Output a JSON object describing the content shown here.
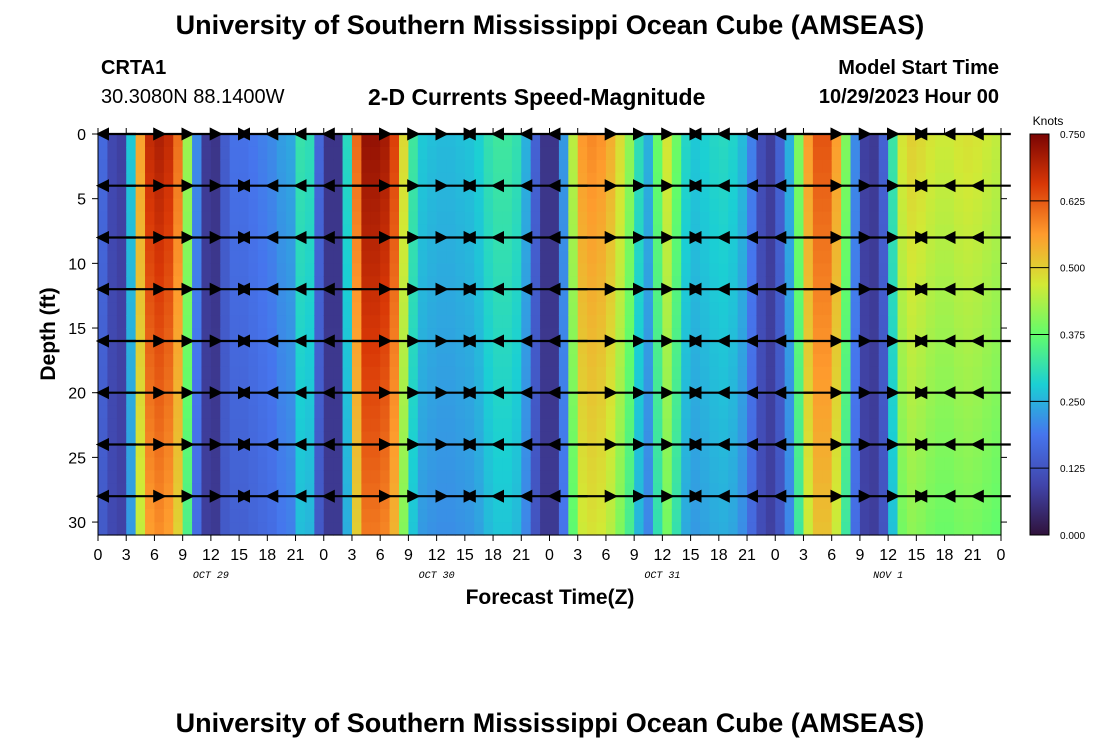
{
  "header": {
    "title": "University of Southern Mississippi Ocean Cube (AMSEAS)",
    "station_id": "CRTA1",
    "station_coords": "30.3080N  88.1400W",
    "chart_title": "2-D Currents Speed-Magnitude",
    "model_start_label": "Model Start Time",
    "model_start_value": "10/29/2023 Hour 00"
  },
  "footer": {
    "title": "University of Southern Mississippi Ocean Cube (AMSEAS)"
  },
  "chart_data": {
    "type": "heatmap",
    "title": "2-D Currents Speed-Magnitude",
    "xlabel": "Forecast Time(Z)",
    "ylabel": "Depth (ft)",
    "x_ticks": [
      "0",
      "3",
      "6",
      "9",
      "12",
      "15",
      "18",
      "21",
      "0",
      "3",
      "6",
      "9",
      "12",
      "15",
      "18",
      "21",
      "0",
      "3",
      "6",
      "9",
      "12",
      "15",
      "18",
      "21",
      "0",
      "3",
      "6",
      "9",
      "12",
      "15",
      "18",
      "21",
      "0"
    ],
    "x_range_hours": [
      0,
      96
    ],
    "date_labels": [
      {
        "label": "OCT 29",
        "hour": 12
      },
      {
        "label": "OCT 30",
        "hour": 36
      },
      {
        "label": "OCT 31",
        "hour": 60
      },
      {
        "label": "NOV 1",
        "hour": 84
      }
    ],
    "y_ticks": [
      0,
      5,
      10,
      15,
      20,
      25,
      30
    ],
    "y_range_ft": [
      0,
      31
    ],
    "colorbar": {
      "label": "Knots",
      "min": 0.0,
      "max": 0.75,
      "tick_values": [
        0.0,
        0.125,
        0.25,
        0.375,
        0.5,
        0.625,
        0.75
      ],
      "tick_labels": [
        "0.000",
        "0.125",
        "0.250",
        "0.375",
        "0.500",
        "0.625",
        "0.750"
      ]
    },
    "speed_profile_knots": [
      {
        "hour": 0,
        "value": 0.2
      },
      {
        "hour": 1,
        "value": 0.13
      },
      {
        "hour": 2,
        "value": 0.07
      },
      {
        "hour": 3,
        "value": 0.1
      },
      {
        "hour": 4,
        "value": 0.45
      },
      {
        "hour": 5,
        "value": 0.66
      },
      {
        "hour": 6,
        "value": 0.7
      },
      {
        "hour": 7,
        "value": 0.7
      },
      {
        "hour": 8,
        "value": 0.66
      },
      {
        "hour": 9,
        "value": 0.55
      },
      {
        "hour": 10,
        "value": 0.3
      },
      {
        "hour": 11,
        "value": 0.12
      },
      {
        "hour": 12,
        "value": 0.03
      },
      {
        "hour": 13,
        "value": 0.1
      },
      {
        "hour": 14,
        "value": 0.18
      },
      {
        "hour": 15,
        "value": 0.18
      },
      {
        "hour": 16,
        "value": 0.18
      },
      {
        "hour": 17,
        "value": 0.2
      },
      {
        "hour": 18,
        "value": 0.2
      },
      {
        "hour": 19,
        "value": 0.22
      },
      {
        "hour": 20,
        "value": 0.24
      },
      {
        "hour": 21,
        "value": 0.24
      },
      {
        "hour": 22,
        "value": 0.4
      },
      {
        "hour": 23,
        "value": 0.22
      },
      {
        "hour": 24,
        "value": 0.1
      },
      {
        "hour": 25,
        "value": 0.03
      },
      {
        "hour": 26,
        "value": 0.1
      },
      {
        "hour": 27,
        "value": 0.5
      },
      {
        "hour": 28,
        "value": 0.72
      },
      {
        "hour": 29,
        "value": 0.73
      },
      {
        "hour": 30,
        "value": 0.72
      },
      {
        "hour": 31,
        "value": 0.7
      },
      {
        "hour": 32,
        "value": 0.6
      },
      {
        "hour": 33,
        "value": 0.38
      },
      {
        "hour": 34,
        "value": 0.28
      },
      {
        "hour": 35,
        "value": 0.27
      },
      {
        "hour": 36,
        "value": 0.26
      },
      {
        "hour": 37,
        "value": 0.26
      },
      {
        "hour": 38,
        "value": 0.26
      },
      {
        "hour": 39,
        "value": 0.27
      },
      {
        "hour": 40,
        "value": 0.27
      },
      {
        "hour": 41,
        "value": 0.3
      },
      {
        "hour": 42,
        "value": 0.33
      },
      {
        "hour": 43,
        "value": 0.33
      },
      {
        "hour": 44,
        "value": 0.33
      },
      {
        "hour": 45,
        "value": 0.3
      },
      {
        "hour": 46,
        "value": 0.2
      },
      {
        "hour": 47,
        "value": 0.1
      },
      {
        "hour": 48,
        "value": 0.03
      },
      {
        "hour": 49,
        "value": 0.1
      },
      {
        "hour": 50,
        "value": 0.35
      },
      {
        "hour": 51,
        "value": 0.55
      },
      {
        "hour": 52,
        "value": 0.58
      },
      {
        "hour": 53,
        "value": 0.58
      },
      {
        "hour": 54,
        "value": 0.56
      },
      {
        "hour": 55,
        "value": 0.52
      },
      {
        "hour": 56,
        "value": 0.45
      },
      {
        "hour": 57,
        "value": 0.38
      },
      {
        "hour": 58,
        "value": 0.24
      },
      {
        "hour": 59,
        "value": 0.26
      },
      {
        "hour": 60,
        "value": 0.5
      },
      {
        "hour": 61,
        "value": 0.45
      },
      {
        "hour": 62,
        "value": 0.32
      },
      {
        "hour": 63,
        "value": 0.27
      },
      {
        "hour": 64,
        "value": 0.28
      },
      {
        "hour": 65,
        "value": 0.29
      },
      {
        "hour": 66,
        "value": 0.3
      },
      {
        "hour": 67,
        "value": 0.3
      },
      {
        "hour": 68,
        "value": 0.28
      },
      {
        "hour": 69,
        "value": 0.24
      },
      {
        "hour": 70,
        "value": 0.16
      },
      {
        "hour": 71,
        "value": 0.06
      },
      {
        "hour": 72,
        "value": 0.1
      },
      {
        "hour": 73,
        "value": 0.2
      },
      {
        "hour": 74,
        "value": 0.3
      },
      {
        "hour": 75,
        "value": 0.5
      },
      {
        "hour": 76,
        "value": 0.62
      },
      {
        "hour": 77,
        "value": 0.64
      },
      {
        "hour": 78,
        "value": 0.62
      },
      {
        "hour": 79,
        "value": 0.5
      },
      {
        "hour": 80,
        "value": 0.3
      },
      {
        "hour": 81,
        "value": 0.12
      },
      {
        "hour": 82,
        "value": 0.05
      },
      {
        "hour": 83,
        "value": 0.1
      },
      {
        "hour": 84,
        "value": 0.2
      },
      {
        "hour": 85,
        "value": 0.45
      },
      {
        "hour": 86,
        "value": 0.5
      },
      {
        "hour": 87,
        "value": 0.5
      },
      {
        "hour": 88,
        "value": 0.48
      },
      {
        "hour": 89,
        "value": 0.47
      },
      {
        "hour": 90,
        "value": 0.46
      },
      {
        "hour": 91,
        "value": 0.47
      },
      {
        "hour": 92,
        "value": 0.48
      },
      {
        "hour": 93,
        "value": 0.48
      },
      {
        "hour": 94,
        "value": 0.47
      },
      {
        "hour": 95,
        "value": 0.46
      },
      {
        "hour": 96,
        "value": 0.45
      }
    ],
    "vector_depths_ft": [
      0,
      4,
      8,
      12,
      16,
      20,
      24,
      28
    ],
    "vector_direction_note": "arrows point east (right) during flood and west (left) during ebb, with near-zero slack periods"
  }
}
